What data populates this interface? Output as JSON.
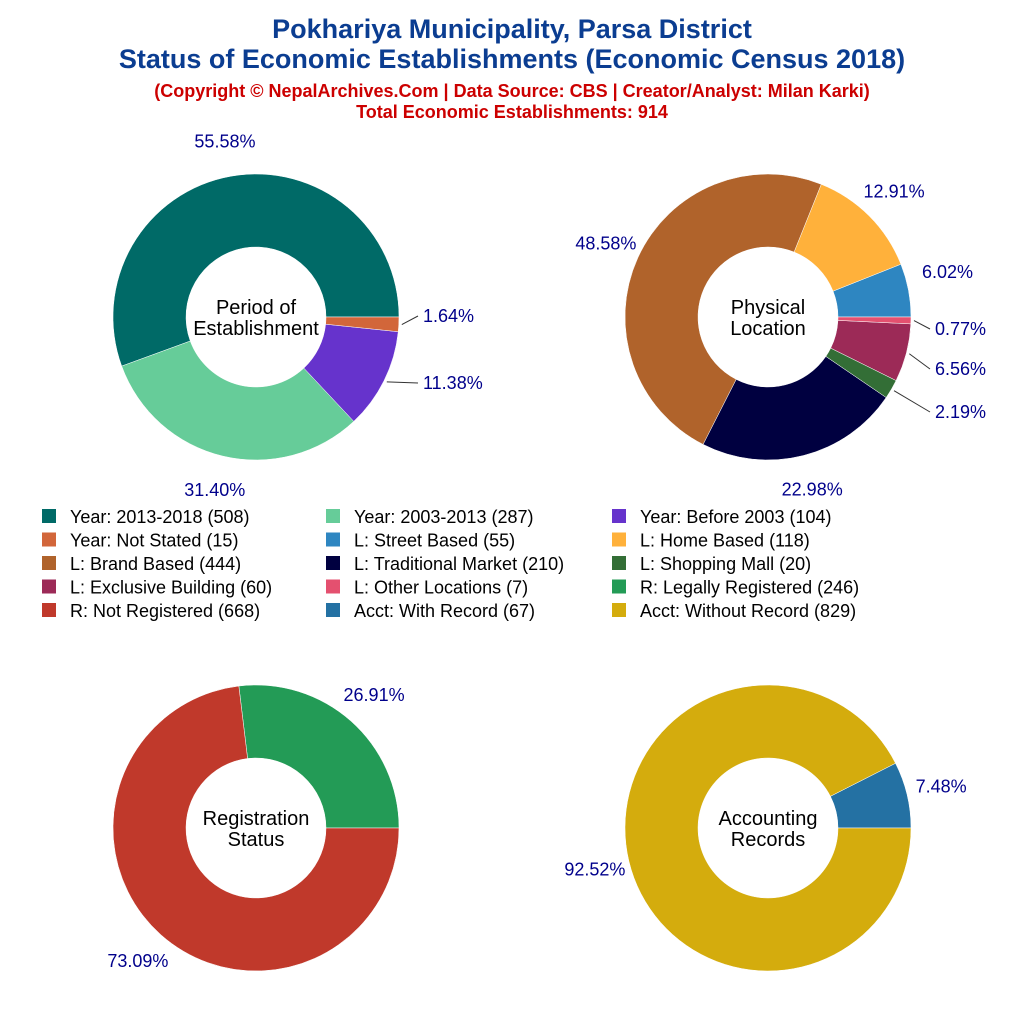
{
  "header": {
    "title_line1": "Pokhariya Municipality, Parsa District",
    "title_line2": "Status of Economic Establishments (Economic Census 2018)",
    "copyright": "(Copyright © NepalArchives.Com | Data Source: CBS | Creator/Analyst: Milan Karki)",
    "total": "Total Economic Establishments: 914"
  },
  "chart_data": [
    {
      "type": "pie",
      "donut": true,
      "center_label": [
        "Period of",
        "Establishment"
      ],
      "start": "east",
      "direction": "counterclockwise",
      "slices": [
        {
          "name": "Year: 2013-2018",
          "value": 508,
          "percent": "55.58%",
          "color": "#006a67"
        },
        {
          "name": "Year: 2003-2013",
          "value": 287,
          "percent": "31.40%",
          "color": "#66cc99"
        },
        {
          "name": "Year: Before 2003",
          "value": 104,
          "percent": "11.38%",
          "color": "#6633cc"
        },
        {
          "name": "Year: Not Stated",
          "value": 15,
          "percent": "1.64%",
          "color": "#d2663a"
        }
      ]
    },
    {
      "type": "pie",
      "donut": true,
      "center_label": [
        "Physical",
        "Location"
      ],
      "start": "east",
      "direction": "counterclockwise",
      "slices": [
        {
          "name": "L: Street Based",
          "value": 55,
          "percent": "6.02%",
          "color": "#2e86c1"
        },
        {
          "name": "L: Home Based",
          "value": 118,
          "percent": "12.91%",
          "color": "#ffb13b"
        },
        {
          "name": "L: Brand Based",
          "value": 444,
          "percent": "48.58%",
          "color": "#b0632b"
        },
        {
          "name": "L: Traditional Market",
          "value": 210,
          "percent": "22.98%",
          "color": "#000040"
        },
        {
          "name": "L: Shopping Mall",
          "value": 20,
          "percent": "2.19%",
          "color": "#336e36"
        },
        {
          "name": "L: Exclusive Building",
          "value": 60,
          "percent": "6.56%",
          "color": "#9c2a57"
        },
        {
          "name": "L: Other Locations",
          "value": 7,
          "percent": "0.77%",
          "color": "#e4506f"
        }
      ]
    },
    {
      "type": "pie",
      "donut": true,
      "center_label": [
        "Registration",
        "Status"
      ],
      "start": "east",
      "direction": "counterclockwise",
      "slices": [
        {
          "name": "R: Legally Registered",
          "value": 246,
          "percent": "26.91%",
          "color": "#239b56"
        },
        {
          "name": "R: Not Registered",
          "value": 668,
          "percent": "73.09%",
          "color": "#c0392b"
        }
      ]
    },
    {
      "type": "pie",
      "donut": true,
      "center_label": [
        "Accounting",
        "Records"
      ],
      "start": "east",
      "direction": "counterclockwise",
      "slices": [
        {
          "name": "Acct: With Record",
          "value": 67,
          "percent": "7.48%",
          "color": "#2471a3"
        },
        {
          "name": "Acct: Without Record",
          "value": 829,
          "percent": "92.52%",
          "color": "#d4ac0d"
        }
      ]
    }
  ],
  "legend": {
    "placement": "middle",
    "items": [
      {
        "label": "Year: 2013-2018 (508)",
        "color": "#006a67"
      },
      {
        "label": "Year: 2003-2013 (287)",
        "color": "#66cc99"
      },
      {
        "label": "Year: Before 2003 (104)",
        "color": "#6633cc"
      },
      {
        "label": "Year: Not Stated (15)",
        "color": "#d2663a"
      },
      {
        "label": "L: Street Based (55)",
        "color": "#2e86c1"
      },
      {
        "label": "L: Home Based (118)",
        "color": "#ffb13b"
      },
      {
        "label": "L: Brand Based (444)",
        "color": "#b0632b"
      },
      {
        "label": "L: Traditional Market (210)",
        "color": "#000040"
      },
      {
        "label": "L: Shopping Mall (20)",
        "color": "#336e36"
      },
      {
        "label": "L: Exclusive Building (60)",
        "color": "#9c2a57"
      },
      {
        "label": "L: Other Locations (7)",
        "color": "#e4506f"
      },
      {
        "label": "R: Legally Registered (246)",
        "color": "#239b56"
      },
      {
        "label": "R: Not Registered (668)",
        "color": "#c0392b"
      },
      {
        "label": "Acct: With Record (67)",
        "color": "#2471a3"
      },
      {
        "label": "Acct: Without Record (829)",
        "color": "#d4ac0d"
      }
    ]
  }
}
